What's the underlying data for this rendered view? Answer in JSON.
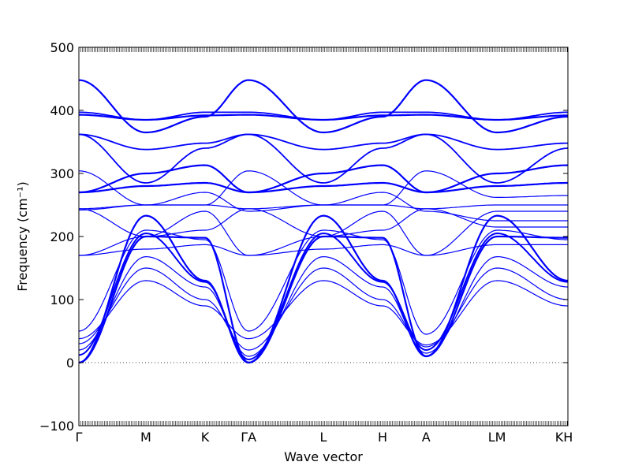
{
  "chart_data": {
    "type": "line",
    "title": "",
    "xlabel": "Wave vector",
    "ylabel": "Frequency (cm⁻¹)",
    "ylim": [
      -100,
      500
    ],
    "yticks": [
      -100,
      0,
      100,
      200,
      300,
      400,
      500
    ],
    "grid": false,
    "legend": "none",
    "zero_line": {
      "y": 0,
      "style": "dotted"
    },
    "line_color": "#0000ff",
    "high_symmetry_points": [
      {
        "label": "Γ",
        "x": 0.0
      },
      {
        "label": "M",
        "x": 0.137
      },
      {
        "label": "K",
        "x": 0.258
      },
      {
        "label": "ΓA",
        "x": 0.347
      },
      {
        "label": "L",
        "x": 0.5
      },
      {
        "label": "H",
        "x": 0.621
      },
      {
        "label": "A",
        "x": 0.71
      },
      {
        "label": "LM",
        "x": 0.855
      },
      {
        "label": "KH",
        "x": 0.992
      }
    ],
    "segment_breaks_x": [
      0,
      0.137,
      0.258,
      0.347,
      0.5,
      0.621,
      0.71,
      0.855,
      1.0
    ],
    "series": [
      {
        "values_at_nodes": [
          0,
          200,
          198,
          0,
          200,
          198,
          10,
          200,
          198
        ],
        "width": 2.2
      },
      {
        "values_at_nodes": [
          0,
          233,
          130,
          0,
          233,
          130,
          10,
          233,
          130
        ],
        "width": 2.2
      },
      {
        "values_at_nodes": [
          12,
          205,
          128,
          5,
          205,
          128,
          20,
          205,
          128
        ],
        "width": 2.0
      },
      {
        "values_at_nodes": [
          20,
          168,
          120,
          10,
          168,
          120,
          15,
          168,
          120
        ],
        "width": 1.2
      },
      {
        "values_at_nodes": [
          30,
          150,
          100,
          20,
          150,
          100,
          25,
          150,
          100
        ],
        "width": 1.2
      },
      {
        "values_at_nodes": [
          38,
          130,
          90,
          38,
          130,
          90,
          28,
          130,
          90
        ],
        "width": 1.2
      },
      {
        "values_at_nodes": [
          50,
          210,
          195,
          50,
          210,
          195,
          45,
          210,
          195
        ],
        "width": 1.2
      },
      {
        "values_at_nodes": [
          170,
          180,
          187,
          170,
          180,
          187,
          170,
          187,
          187
        ],
        "width": 1.2
      },
      {
        "values_at_nodes": [
          170,
          200,
          240,
          170,
          200,
          240,
          170,
          240,
          240
        ],
        "width": 1.2
      },
      {
        "values_at_nodes": [
          242,
          250,
          270,
          240,
          250,
          270,
          240,
          225,
          225
        ],
        "width": 1.2
      },
      {
        "values_at_nodes": [
          244,
          250,
          250,
          244,
          250,
          250,
          244,
          250,
          250
        ],
        "width": 1.2
      },
      {
        "values_at_nodes": [
          244,
          200,
          210,
          244,
          200,
          210,
          244,
          215,
          215
        ],
        "width": 1.2
      },
      {
        "values_at_nodes": [
          270,
          280,
          285,
          270,
          280,
          285,
          270,
          280,
          285
        ],
        "width": 2.2
      },
      {
        "values_at_nodes": [
          304,
          250,
          250,
          304,
          250,
          250,
          304,
          262,
          265
        ],
        "width": 1.2
      },
      {
        "values_at_nodes": [
          270,
          300,
          313,
          270,
          300,
          313,
          270,
          300,
          313
        ],
        "width": 2.2
      },
      {
        "values_at_nodes": [
          362,
          285,
          340,
          362,
          285,
          340,
          362,
          285,
          340
        ],
        "width": 1.8
      },
      {
        "values_at_nodes": [
          362,
          338,
          348,
          362,
          338,
          348,
          362,
          338,
          348
        ],
        "width": 1.8
      },
      {
        "values_at_nodes": [
          393,
          385,
          392,
          393,
          385,
          392,
          393,
          385,
          392
        ],
        "width": 2.2
      },
      {
        "values_at_nodes": [
          397,
          385,
          397,
          397,
          385,
          397,
          397,
          385,
          397
        ],
        "width": 1.8
      },
      {
        "values_at_nodes": [
          448,
          365,
          390,
          448,
          365,
          390,
          448,
          365,
          390
        ],
        "width": 2.2
      }
    ]
  }
}
